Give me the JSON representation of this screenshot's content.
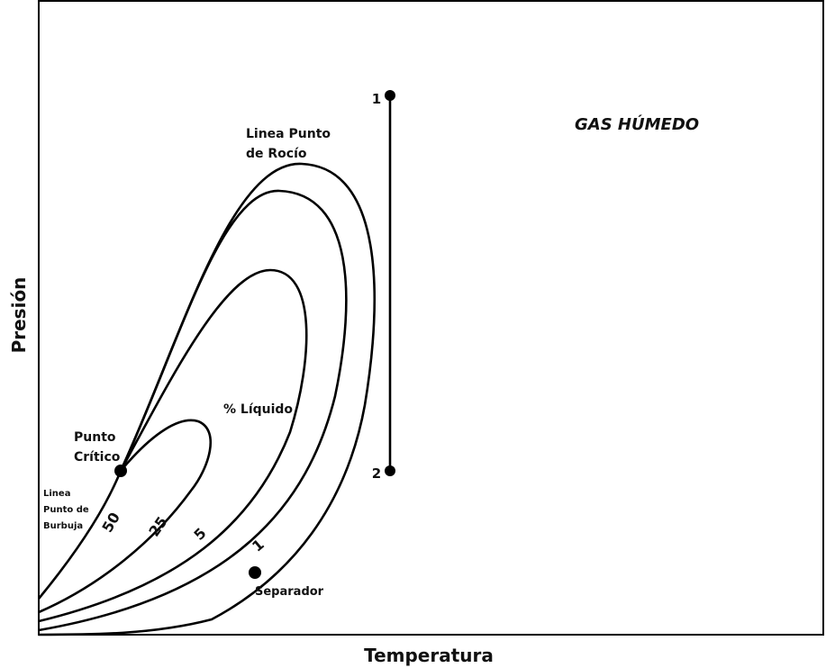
{
  "title": "GAS HÚMEDO",
  "axes": {
    "x_label": "Temperatura",
    "y_label": "Presión"
  },
  "annotations": {
    "dew_line": [
      "Linea Punto",
      "de Rocío"
    ],
    "liquid": "% Líquido",
    "critical_point": [
      "Punto",
      "Crítico"
    ],
    "bubble_line": [
      "Linea",
      "Punto de",
      "Burbuja"
    ],
    "separator": "Separador"
  },
  "contours": [
    50,
    25,
    5,
    1
  ],
  "path_points": [
    "1",
    "2"
  ]
}
